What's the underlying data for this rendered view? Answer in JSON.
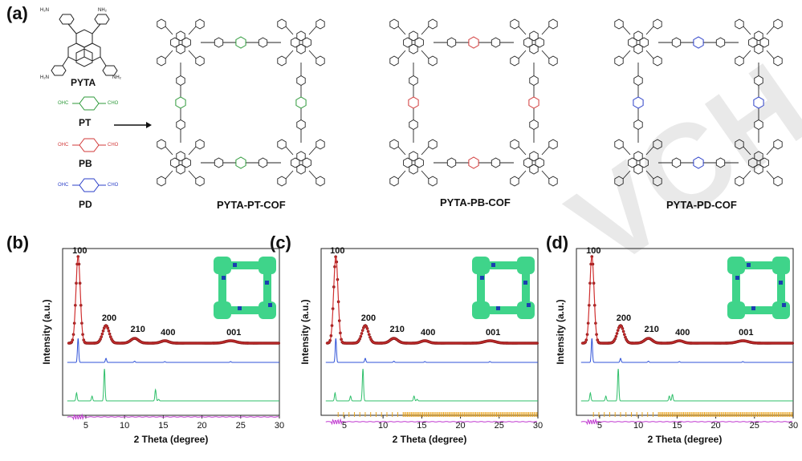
{
  "panels": {
    "a": "(a)",
    "b": "(b)",
    "c": "(c)",
    "d": "(d)"
  },
  "monomers": {
    "pyta": "PYTA",
    "pt": "PT",
    "pb": "PB",
    "pd": "PD",
    "cho": "CHO",
    "ohc": "OHC",
    "nh2": "NH₂",
    "h2n": "H₂N"
  },
  "cofs": {
    "pt": "PYTA-PT-COF",
    "pb": "PYTA-PB-COF",
    "pd": "PYTA-PD-COF"
  },
  "colors": {
    "pt": "#2e9a3a",
    "pb": "#d23a3a",
    "pd": "#2b3fc8",
    "experimental": "#8b1a1a",
    "refined": "#d03030",
    "simulated": "#2f52d8",
    "calc": "#2fbf6a",
    "bragg": "#e8a21a",
    "difference": "#c03ad0",
    "model_green": "#3fd48a",
    "model_blue": "#1a3fb0"
  },
  "chart_data": [
    {
      "panel": "b",
      "type": "line",
      "xlabel": "2 Theta (degree)",
      "ylabel": "Intensity (a.u.)",
      "xlim": [
        2,
        30
      ],
      "xticks": [
        5,
        10,
        15,
        20,
        25,
        30
      ],
      "peaks": [
        {
          "label": "100",
          "x": 4.0
        },
        {
          "label": "200",
          "x": 7.6
        },
        {
          "label": "210",
          "x": 11.3
        },
        {
          "label": "400",
          "x": 15.2
        },
        {
          "label": "001",
          "x": 23.7
        }
      ]
    },
    {
      "panel": "c",
      "type": "line",
      "xlabel": "2 Theta (degree)",
      "ylabel": "Intensity (a.u.)",
      "xlim": [
        2,
        30
      ],
      "xticks": [
        5,
        10,
        15,
        20,
        25,
        30
      ],
      "peaks": [
        {
          "label": "100",
          "x": 3.9
        },
        {
          "label": "200",
          "x": 7.7
        },
        {
          "label": "210",
          "x": 11.4
        },
        {
          "label": "400",
          "x": 15.4
        },
        {
          "label": "001",
          "x": 23.8
        }
      ]
    },
    {
      "panel": "d",
      "type": "line",
      "xlabel": "2 Theta (degree)",
      "ylabel": "Intensity (a.u.)",
      "xlim": [
        2,
        30
      ],
      "xticks": [
        5,
        10,
        15,
        20,
        25,
        30
      ],
      "peaks": [
        {
          "label": "100",
          "x": 4.0
        },
        {
          "label": "200",
          "x": 7.7
        },
        {
          "label": "210",
          "x": 11.3
        },
        {
          "label": "400",
          "x": 15.3
        },
        {
          "label": "001",
          "x": 23.5
        }
      ]
    }
  ]
}
